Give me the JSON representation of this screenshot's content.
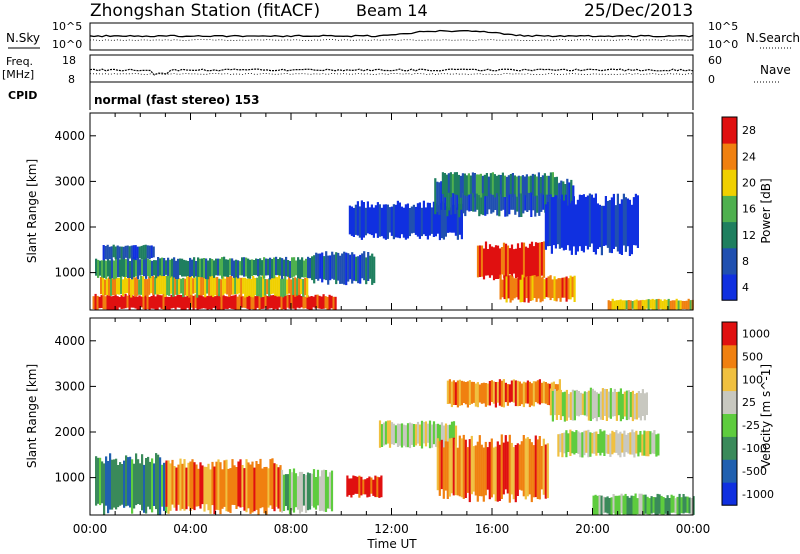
{
  "header": {
    "title": "Zhongshan Station (fitACF)",
    "beam": "Beam 14",
    "date": "25/Dec/2013"
  },
  "top_panels": {
    "nsky_label": "N.Sky",
    "nsearch_label": "N.Search",
    "nsky_ticks": [
      "10^5",
      "10^0"
    ],
    "freq_label": "Freq.",
    "freq_unit": "[MHz]",
    "freq_ticks": [
      "18",
      "8"
    ],
    "nave_label": "Nave",
    "nave_ticks": [
      "60",
      "0"
    ],
    "cpid_label": "CPID",
    "cpid_value": "normal (fast stereo) 153"
  },
  "chart_data": [
    {
      "type": "heatmap",
      "name": "power",
      "ylabel": "Slant Range [km]",
      "ylim": [
        180,
        4500
      ],
      "yticks": [
        "1000",
        "2000",
        "3000",
        "4000"
      ],
      "xlim": [
        0,
        24
      ],
      "colorbar": {
        "label": "Power [dB]",
        "ticks": [
          "4",
          "8",
          "12",
          "16",
          "20",
          "24",
          "28"
        ],
        "colors": [
          "#1030e0",
          "#2050b0",
          "#1f7f5f",
          "#4fb04f",
          "#f0d000",
          "#f08010",
          "#e01010"
        ]
      },
      "regions": [
        {
          "t": [
            0.1,
            9.8
          ],
          "r": [
            200,
            500
          ],
          "level": 6
        },
        {
          "t": [
            0.4,
            8.6
          ],
          "r": [
            500,
            900
          ],
          "level": 4
        },
        {
          "t": [
            0.2,
            8.8
          ],
          "r": [
            900,
            1300
          ],
          "level": 2
        },
        {
          "t": [
            0.5,
            2.5
          ],
          "r": [
            1300,
            1600
          ],
          "level": 1
        },
        {
          "t": [
            8.8,
            11.3
          ],
          "r": [
            800,
            1400
          ],
          "level": 1
        },
        {
          "t": [
            10.3,
            14.8
          ],
          "r": [
            1800,
            2500
          ],
          "level": 0
        },
        {
          "t": [
            13.7,
            19.2
          ],
          "r": [
            2300,
            3000
          ],
          "level": 1
        },
        {
          "t": [
            15.4,
            18.1
          ],
          "r": [
            900,
            1600
          ],
          "level": 6
        },
        {
          "t": [
            16.3,
            19.3
          ],
          "r": [
            400,
            900
          ],
          "level": 5
        },
        {
          "t": [
            18.1,
            21.8
          ],
          "r": [
            1500,
            2600
          ],
          "level": 0
        },
        {
          "t": [
            20.6,
            24.0
          ],
          "r": [
            180,
            400
          ],
          "level": 4
        },
        {
          "t": [
            14.0,
            18.6
          ],
          "r": [
            2700,
            3150
          ],
          "level": 2
        }
      ]
    },
    {
      "type": "heatmap",
      "name": "velocity",
      "ylabel": "Slant Range [km]",
      "xlabel": "Time UT",
      "ylim": [
        180,
        4500
      ],
      "yticks": [
        "1000",
        "2000",
        "3000",
        "4000"
      ],
      "xlim": [
        0,
        24
      ],
      "xticks": [
        "00:00",
        "04:00",
        "08:00",
        "12:00",
        "16:00",
        "20:00",
        "00:00"
      ],
      "colorbar": {
        "label": "Velocity [m s^-1]",
        "ticks": [
          "1000",
          "500",
          "100",
          "25",
          "-25",
          "-100",
          "-500",
          "-1000"
        ],
        "colors": [
          "#1030e0",
          "#2060b0",
          "#3a8a5a",
          "#5ecc3e",
          "#c8c8c0",
          "#f0c040",
          "#f08010",
          "#e01010"
        ]
      },
      "regions": [
        {
          "t": [
            0.2,
            3.0
          ],
          "r": [
            300,
            1400
          ],
          "level": 2
        },
        {
          "t": [
            3.0,
            7.6
          ],
          "r": [
            300,
            1300
          ],
          "level": 6
        },
        {
          "t": [
            7.6,
            9.6
          ],
          "r": [
            300,
            1100
          ],
          "level": 3
        },
        {
          "t": [
            10.2,
            11.6
          ],
          "r": [
            600,
            1000
          ],
          "level": 7
        },
        {
          "t": [
            11.5,
            14.6
          ],
          "r": [
            1700,
            2200
          ],
          "level": 4
        },
        {
          "t": [
            13.8,
            18.2
          ],
          "r": [
            600,
            1800
          ],
          "level": 6
        },
        {
          "t": [
            14.2,
            18.7
          ],
          "r": [
            2600,
            3100
          ],
          "level": 6
        },
        {
          "t": [
            18.3,
            22.2
          ],
          "r": [
            2300,
            2900
          ],
          "level": 4
        },
        {
          "t": [
            18.6,
            22.6
          ],
          "r": [
            1500,
            2000
          ],
          "level": 4
        },
        {
          "t": [
            20.0,
            24.0
          ],
          "r": [
            180,
            600
          ],
          "level": 3
        }
      ]
    }
  ]
}
